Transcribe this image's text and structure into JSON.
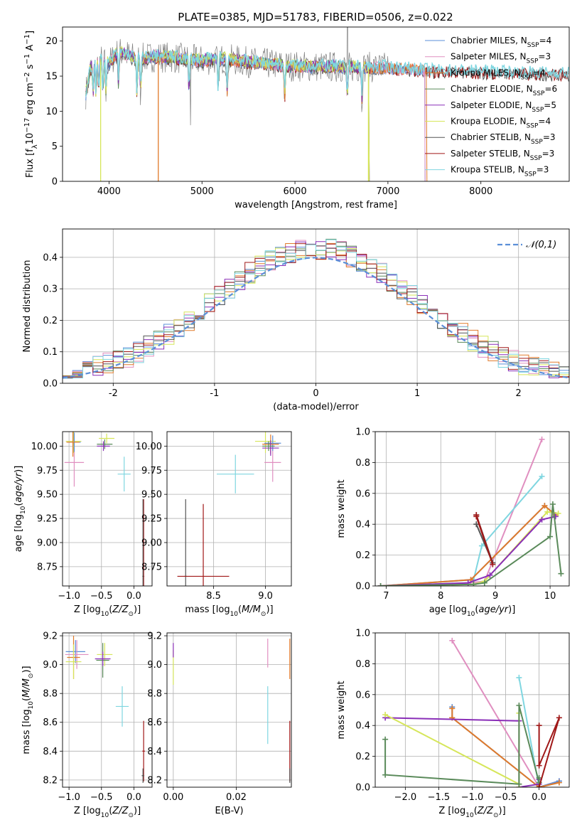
{
  "figure_title": "PLATE=0385, MJD=51783, FIBERID=0506, z=0.022",
  "colors": {
    "Chabrier MILES": "#5b8fd8",
    "Salpeter MILES": "#e08fc0",
    "Kroupa MILES": "#e07a2a",
    "Chabrier ELODIE": "#5a8a5a",
    "Salpeter ELODIE": "#8a2fb8",
    "Kroupa ELODIE": "#d6e65a",
    "Chabrier STELIB": "#555555",
    "Salpeter STELIB": "#a01818",
    "Kroupa STELIB": "#7fd6e0",
    "Normal": "#5b8fd8"
  },
  "chart_data": [
    {
      "id": "spectrum",
      "type": "line",
      "title": "PLATE=0385, MJD=51783, FIBERID=0506, z=0.022",
      "xlabel": "wavelength [Angstrom, rest frame]",
      "ylabel": "Flux [f_λ 10^-17 erg cm^-2 s^-1 A^-1]",
      "xlim": [
        3500,
        8950
      ],
      "ylim": [
        0,
        22
      ],
      "xticks": [
        4000,
        5000,
        6000,
        7000,
        8000
      ],
      "yticks": [
        0,
        5,
        10,
        15,
        20
      ],
      "grid": false,
      "legend_position": "top-right",
      "legend": [
        {
          "name": "Chabrier MILES",
          "nssp": "4"
        },
        {
          "name": "Salpeter MILES",
          "nssp": "3"
        },
        {
          "name": "Kroupa MILES",
          "nssp": "4"
        },
        {
          "name": "Chabrier ELODIE",
          "nssp": "6"
        },
        {
          "name": "Salpeter ELODIE",
          "nssp": "5"
        },
        {
          "name": "Kroupa ELODIE",
          "nssp": "4"
        },
        {
          "name": "Chabrier STELIB",
          "nssp": "3"
        },
        {
          "name": "Salpeter STELIB",
          "nssp": "3"
        },
        {
          "name": "Kroupa STELIB",
          "nssp": "3"
        }
      ],
      "continuum": {
        "x": [
          3750,
          3800,
          3850,
          3900,
          4000,
          4100,
          4200,
          4300,
          4400,
          4500,
          4700,
          5000,
          5200,
          5500,
          6000,
          6500,
          7000,
          7200,
          7500,
          8000,
          8500,
          8950
        ],
        "y": [
          12.5,
          16.0,
          17.0,
          17.5,
          16.8,
          18.5,
          18.0,
          17.4,
          17.6,
          17.8,
          17.6,
          17.2,
          17.5,
          17.0,
          16.4,
          16.3,
          16.2,
          16.0,
          15.7,
          15.6,
          15.4,
          15.3
        ]
      },
      "model_ends": {
        "Chabrier MILES": 7400,
        "Salpeter MILES": 7400,
        "Kroupa MILES": 7420,
        "Chabrier ELODIE": 6800,
        "Salpeter ELODIE": 6800,
        "Kroupa ELODIE": 6800,
        "Chabrier STELIB": 8950,
        "Salpeter STELIB": 8950,
        "Kroupa STELIB": 8950
      }
    },
    {
      "id": "residuals",
      "type": "step-histogram",
      "xlabel": "(data-model)/error",
      "ylabel": "Normed distribution",
      "xlim": [
        -2.5,
        2.5
      ],
      "ylim": [
        0,
        0.49
      ],
      "xticks": [
        -2,
        -1,
        0,
        1,
        2
      ],
      "yticks": [
        0.0,
        0.1,
        0.2,
        0.3,
        0.4
      ],
      "grid": true,
      "legend": [
        {
          "name": "𝒩(0,1)"
        }
      ],
      "legend_position": "top-right",
      "bin_width": 0.1
    },
    {
      "id": "age-vs-Z",
      "type": "errorbar",
      "xlabel": "Z [log10(Z/Z⊙)]",
      "ylabel": "age [log10(age/yr)]",
      "xlim": [
        -1.1,
        0.28
      ],
      "ylim": [
        8.55,
        10.15
      ],
      "xticks": [
        -1.0,
        -0.5,
        0.0
      ],
      "yticks": [
        8.75,
        9.0,
        9.25,
        9.5,
        9.75,
        10.0
      ],
      "grid": true,
      "points": [
        {
          "s": "Salpeter MILES",
          "x": -0.92,
          "xerr": 0.15,
          "y": 9.83,
          "yerr": 0.25
        },
        {
          "s": "Kroupa ELODIE",
          "x": -0.93,
          "xerr": 0.12,
          "y": 10.05,
          "yerr": 0.12
        },
        {
          "s": "Chabrier MILES",
          "x": -0.92,
          "xerr": 0.1,
          "y": 10.04,
          "yerr": 0.1
        },
        {
          "s": "Kroupa MILES",
          "x": -0.94,
          "xerr": 0.1,
          "y": 10.04,
          "yerr": 0.15
        },
        {
          "s": "Kroupa ELODIE",
          "x": -0.42,
          "xerr": 0.12,
          "y": 10.08,
          "yerr": 0.05
        },
        {
          "s": "Chabrier ELODIE",
          "x": -0.45,
          "xerr": 0.12,
          "y": 10.02,
          "yerr": 0.05
        },
        {
          "s": "Salpeter ELODIE",
          "x": -0.47,
          "xerr": 0.1,
          "y": 10.0,
          "yerr": 0.05
        },
        {
          "s": "Kroupa STELIB",
          "x": -0.15,
          "xerr": 0.1,
          "y": 9.71,
          "yerr": 0.18
        },
        {
          "s": "Salpeter STELIB",
          "x": 0.15,
          "xerr": 0.01,
          "y": 8.65,
          "yerr": 0.8
        },
        {
          "s": "Chabrier STELIB",
          "x": 0.14,
          "xerr": 0.01,
          "y": 8.65,
          "yerr": 0.8
        }
      ]
    },
    {
      "id": "age-vs-mass",
      "type": "errorbar",
      "xlabel": "mass [log10(M/M⊙)]",
      "ylabel": "",
      "xlim": [
        8.05,
        9.25
      ],
      "ylim": [
        8.55,
        10.15
      ],
      "xticks": [
        8.5,
        9.0
      ],
      "yticks": [
        8.75,
        9.0,
        9.25,
        9.5,
        9.75,
        10.0
      ],
      "grid": true,
      "points": [
        {
          "s": "Chabrier STELIB",
          "x": 8.23,
          "xerr": 0.01,
          "y": 8.65,
          "yerr": 0.8
        },
        {
          "s": "Salpeter STELIB",
          "x": 8.4,
          "xerr": 0.25,
          "y": 8.65,
          "yerr": 0.75
        },
        {
          "s": "Kroupa STELIB",
          "x": 8.71,
          "xerr": 0.18,
          "y": 9.71,
          "yerr": 0.2
        },
        {
          "s": "Salpeter MILES",
          "x": 9.07,
          "xerr": 0.08,
          "y": 9.83,
          "yerr": 0.2
        },
        {
          "s": "Kroupa ELODIE",
          "x": 9.0,
          "xerr": 0.1,
          "y": 10.05,
          "yerr": 0.12
        },
        {
          "s": "Chabrier MILES",
          "x": 9.07,
          "xerr": 0.08,
          "y": 10.03,
          "yerr": 0.08
        },
        {
          "s": "Kroupa MILES",
          "x": 9.05,
          "xerr": 0.08,
          "y": 10.02,
          "yerr": 0.1
        },
        {
          "s": "Salpeter ELODIE",
          "x": 9.05,
          "xerr": 0.08,
          "y": 9.98,
          "yerr": 0.08
        },
        {
          "s": "Chabrier ELODIE",
          "x": 9.03,
          "xerr": 0.06,
          "y": 10.0,
          "yerr": 0.05
        }
      ]
    },
    {
      "id": "massweight-vs-age",
      "type": "line",
      "xlabel": "age [log10(age/yr)]",
      "ylabel": "mass weight",
      "xlim": [
        6.8,
        10.35
      ],
      "ylim": [
        0,
        1.0
      ],
      "xticks": [
        7,
        8,
        9,
        10
      ],
      "yticks": [
        0.0,
        0.2,
        0.4,
        0.6,
        0.8,
        1.0
      ],
      "grid": true,
      "series": [
        {
          "s": "Salpeter MILES",
          "x": [
            6.9,
            8.5,
            8.8,
            9.85
          ],
          "y": [
            0.0,
            0.02,
            0.03,
            0.95
          ]
        },
        {
          "s": "Kroupa STELIB",
          "x": [
            6.9,
            8.6,
            8.75,
            9.85
          ],
          "y": [
            0.0,
            0.04,
            0.26,
            0.71
          ]
        },
        {
          "s": "Chabrier MILES",
          "x": [
            6.9,
            8.55,
            9.9,
            10.1
          ],
          "y": [
            0.0,
            0.04,
            0.52,
            0.46
          ]
        },
        {
          "s": "Kroupa MILES",
          "x": [
            6.9,
            8.55,
            9.9,
            10.1
          ],
          "y": [
            0.0,
            0.04,
            0.52,
            0.46
          ]
        },
        {
          "s": "Kroupa ELODIE",
          "x": [
            6.9,
            8.6,
            8.8,
            9.95,
            10.15
          ],
          "y": [
            0.0,
            0.01,
            0.03,
            0.48,
            0.47
          ]
        },
        {
          "s": "Salpeter ELODIE",
          "x": [
            6.9,
            8.5,
            8.9,
            9.85,
            10.1
          ],
          "y": [
            0.0,
            0.02,
            0.07,
            0.43,
            0.45
          ]
        },
        {
          "s": "Chabrier ELODIE",
          "x": [
            6.9,
            8.6,
            8.8,
            10.0,
            10.05,
            10.2
          ],
          "y": [
            0.0,
            0.01,
            0.02,
            0.32,
            0.53,
            0.08
          ]
        },
        {
          "s": "Chabrier STELIB",
          "x": [
            8.65,
            8.95,
            8.65
          ],
          "y": [
            0.4,
            0.15,
            0.46
          ]
        },
        {
          "s": "Salpeter STELIB",
          "x": [
            8.65,
            8.95,
            8.65
          ],
          "y": [
            0.46,
            0.14,
            0.45
          ]
        }
      ]
    },
    {
      "id": "mass-vs-Z",
      "type": "errorbar",
      "xlabel": "Z [log10(Z/Z⊙)]",
      "ylabel": "mass [log10(M/M⊙)]",
      "xlim": [
        -1.1,
        0.28
      ],
      "ylim": [
        8.15,
        9.22
      ],
      "xticks": [
        -1.0,
        -0.5,
        0.0
      ],
      "yticks": [
        8.2,
        8.4,
        8.6,
        8.8,
        9.0,
        9.2
      ],
      "grid": true,
      "points": [
        {
          "s": "Chabrier MILES",
          "x": -0.9,
          "xerr": 0.15,
          "y": 9.09,
          "yerr": 0.08
        },
        {
          "s": "Salpeter MILES",
          "x": -0.88,
          "xerr": 0.18,
          "y": 9.07,
          "yerr": 0.1
        },
        {
          "s": "Kroupa MILES",
          "x": -0.93,
          "xerr": 0.1,
          "y": 9.05,
          "yerr": 0.15
        },
        {
          "s": "Kroupa ELODIE",
          "x": -0.93,
          "xerr": 0.12,
          "y": 9.02,
          "yerr": 0.12
        },
        {
          "s": "Kroupa ELODIE",
          "x": -0.45,
          "xerr": 0.12,
          "y": 9.07,
          "yerr": 0.08
        },
        {
          "s": "Chabrier ELODIE",
          "x": -0.48,
          "xerr": 0.1,
          "y": 9.03,
          "yerr": 0.12
        },
        {
          "s": "Salpeter ELODIE",
          "x": -0.48,
          "xerr": 0.12,
          "y": 9.04,
          "yerr": 0.05
        },
        {
          "s": "Kroupa STELIB",
          "x": -0.18,
          "xerr": 0.1,
          "y": 8.71,
          "yerr": 0.14
        },
        {
          "s": "Salpeter STELIB",
          "x": 0.15,
          "xerr": 0.02,
          "y": 8.4,
          "yerr": 0.21
        },
        {
          "s": "Chabrier STELIB",
          "x": 0.14,
          "xerr": 0.02,
          "y": 8.23,
          "yerr": 0.05
        }
      ]
    },
    {
      "id": "mass-vs-EBV",
      "type": "errorbar",
      "xlabel": "E(B-V)",
      "ylabel": "",
      "xlim": [
        -0.002,
        0.0375
      ],
      "ylim": [
        8.15,
        9.22
      ],
      "xticks": [
        0.0,
        0.02
      ],
      "yticks": [
        8.2,
        8.4,
        8.6,
        8.8,
        9.0,
        9.2
      ],
      "grid": true,
      "points": [
        {
          "s": "Kroupa ELODIE",
          "x": 0.0,
          "xerr": 0.0,
          "y": 8.98,
          "yerr": 0.12
        },
        {
          "s": "Salpeter ELODIE",
          "x": 0.0,
          "xerr": 0.0,
          "y": 9.1,
          "yerr": 0.05
        },
        {
          "s": "Kroupa STELIB",
          "x": 0.03,
          "xerr": 0.0,
          "y": 8.65,
          "yerr": 0.2
        },
        {
          "s": "Salpeter MILES",
          "x": 0.03,
          "xerr": 0.0,
          "y": 9.08,
          "yerr": 0.1
        },
        {
          "s": "Kroupa MILES",
          "x": 0.037,
          "xerr": 0.0,
          "y": 9.04,
          "yerr": 0.14
        },
        {
          "s": "Salpeter STELIB",
          "x": 0.037,
          "xerr": 0.0,
          "y": 8.4,
          "yerr": 0.21
        },
        {
          "s": "Chabrier STELIB",
          "x": 0.037,
          "xerr": 0.0,
          "y": 8.23,
          "yerr": 0.05
        }
      ]
    },
    {
      "id": "massweight-vs-Z",
      "type": "line",
      "xlabel": "Z [log10(Z/Z⊙)]",
      "ylabel": "mass weight",
      "xlim": [
        -2.45,
        0.45
      ],
      "ylim": [
        0,
        1.0
      ],
      "xticks": [
        -2.0,
        -1.5,
        -1.0,
        -0.5,
        0.0
      ],
      "yticks": [
        0.0,
        0.2,
        0.4,
        0.6,
        0.8,
        1.0
      ],
      "grid": true,
      "series": [
        {
          "s": "Salpeter MILES",
          "x": [
            -1.3,
            0.0,
            0.3
          ],
          "y": [
            0.95,
            0.0,
            0.04
          ]
        },
        {
          "s": "Kroupa STELIB",
          "x": [
            -0.3,
            0.0,
            0.3
          ],
          "y": [
            0.71,
            0.0,
            0.03
          ]
        },
        {
          "s": "Chabrier MILES",
          "x": [
            -1.3,
            -1.3,
            0.0,
            0.3
          ],
          "y": [
            0.52,
            0.45,
            0.0,
            0.04
          ]
        },
        {
          "s": "Kroupa MILES",
          "x": [
            -1.3,
            -1.3,
            0.0,
            0.3
          ],
          "y": [
            0.51,
            0.45,
            0.0,
            0.03
          ]
        },
        {
          "s": "Salpeter ELODIE",
          "x": [
            -2.3,
            -0.3,
            -0.3,
            0.0,
            0.0
          ],
          "y": [
            0.45,
            0.43,
            0.0,
            0.02,
            0.05
          ]
        },
        {
          "s": "Kroupa ELODIE",
          "x": [
            -2.3,
            -0.3,
            -0.3,
            -0.3
          ],
          "y": [
            0.47,
            0.02,
            0.48,
            0.0
          ]
        },
        {
          "s": "Chabrier ELODIE",
          "x": [
            -2.3,
            -2.3,
            -0.3,
            -0.3,
            0.0,
            0.0
          ],
          "y": [
            0.31,
            0.08,
            0.02,
            0.53,
            0.03,
            0.06
          ]
        },
        {
          "s": "Salpeter STELIB",
          "x": [
            0.0,
            0.0,
            0.3,
            0.0
          ],
          "y": [
            0.4,
            0.14,
            0.45,
            0.0
          ]
        }
      ]
    }
  ]
}
